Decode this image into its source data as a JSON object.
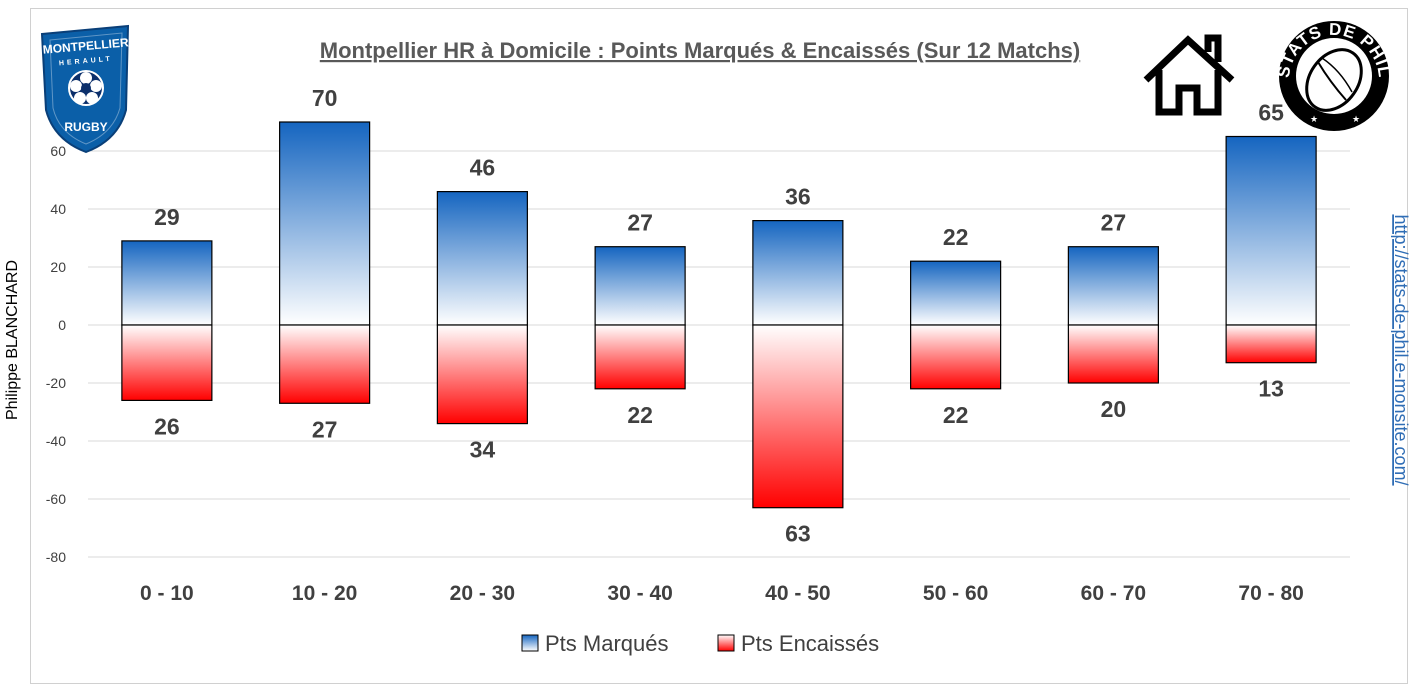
{
  "chart_data": {
    "type": "bar",
    "title": "Montpellier HR à Domicile : Points Marqués & Encaissés (Sur 12 Matchs)",
    "categories": [
      "0 - 10",
      "10 - 20",
      "20 - 30",
      "30 - 40",
      "40 - 50",
      "50 - 60",
      "60 - 70",
      "70 - 80"
    ],
    "series": [
      {
        "name": "Pts Marqués",
        "values": [
          29,
          70,
          46,
          27,
          36,
          22,
          27,
          65
        ],
        "color_top": "#1565c0",
        "color_bottom": "#ffffff"
      },
      {
        "name": "Pts Encaissés",
        "values": [
          26,
          27,
          34,
          22,
          63,
          22,
          20,
          13
        ],
        "direction": "negative",
        "color_top": "#ffffff",
        "color_bottom": "#ff0000"
      }
    ],
    "ylim": [
      -80,
      70
    ],
    "yticks": [
      60,
      40,
      20,
      0,
      -20,
      -40,
      -60,
      -80
    ],
    "grid": true,
    "legend_position": "bottom"
  },
  "side": {
    "author": "Philippe BLANCHARD",
    "url": "http://stats-de-phil.e-monsite.com/"
  },
  "logos": {
    "club": {
      "line1": "MONTPELLIER",
      "line2": "HERAULT",
      "line3": "RUGBY",
      "color": "#0b5fa8"
    },
    "seal": {
      "text": "STATS DE PHIL"
    },
    "home_icon": "house-icon"
  }
}
